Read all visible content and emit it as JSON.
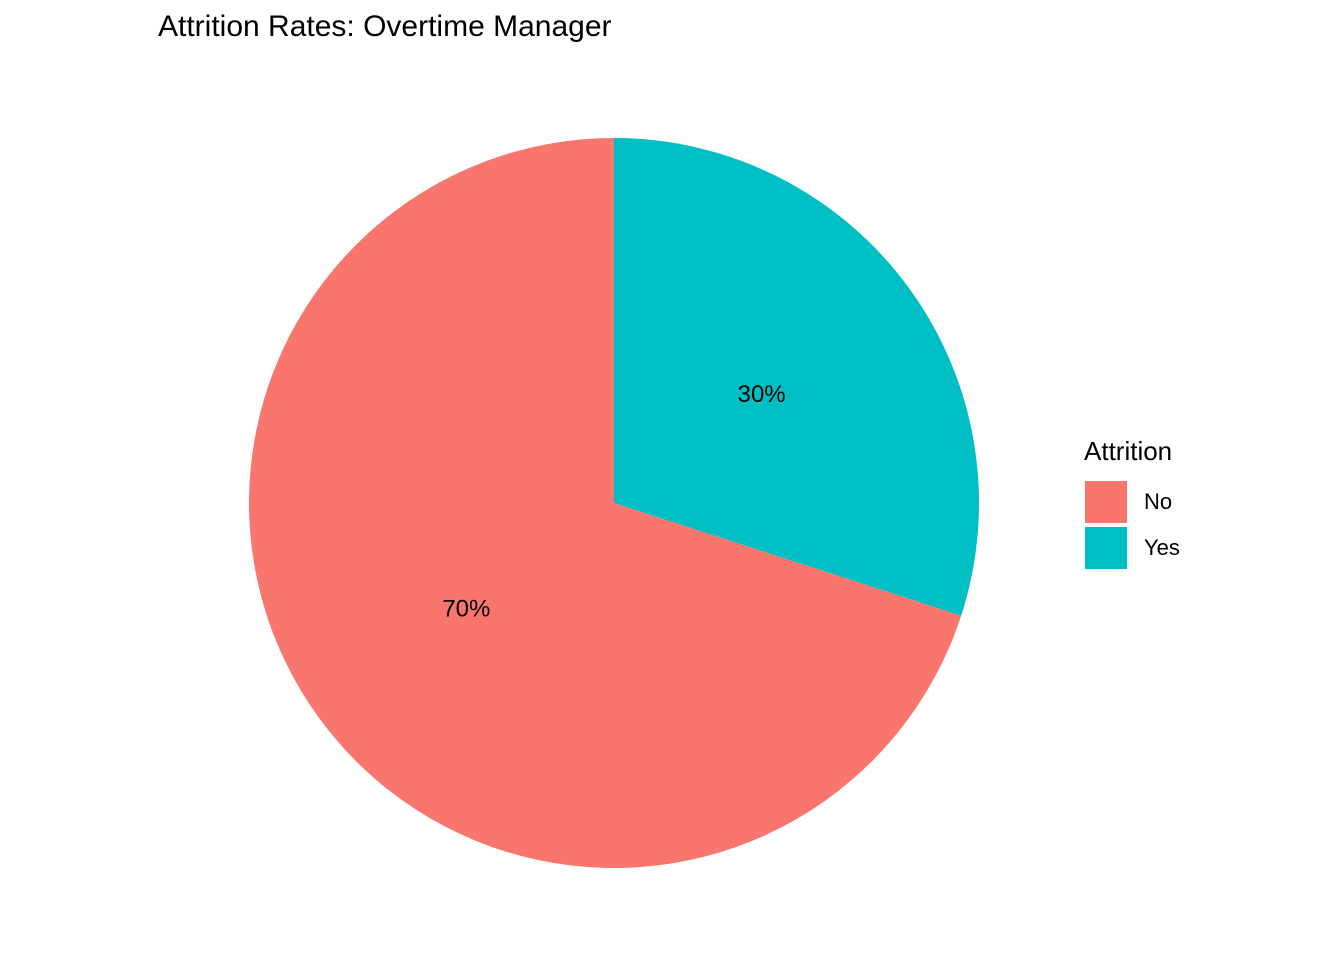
{
  "chart_data": {
    "type": "pie",
    "title": "Attrition Rates: Overtime Manager",
    "legend": {
      "title": "Attrition",
      "placement": "right"
    },
    "start_angle": "12 o'clock, clockwise",
    "slices": [
      {
        "label": "No",
        "value": 70,
        "text": "70%",
        "color": "#F8766D"
      },
      {
        "label": "Yes",
        "value": 30,
        "text": "30%",
        "color": "#00BFC4"
      }
    ]
  }
}
